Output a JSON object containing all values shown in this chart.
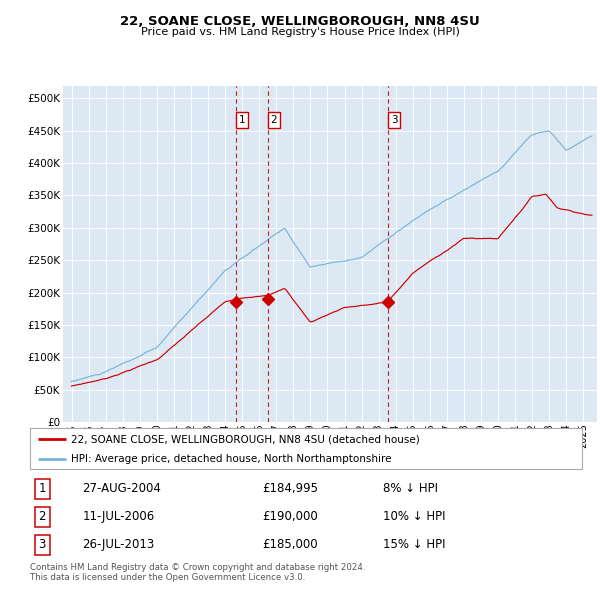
{
  "title": "22, SOANE CLOSE, WELLINGBOROUGH, NN8 4SU",
  "subtitle": "Price paid vs. HM Land Registry's House Price Index (HPI)",
  "background_color": "#ffffff",
  "plot_bg_color": "#dce9f5",
  "red_line_label": "22, SOANE CLOSE, WELLINGBOROUGH, NN8 4SU (detached house)",
  "blue_line_label": "HPI: Average price, detached house, North Northamptonshire",
  "footer": "Contains HM Land Registry data © Crown copyright and database right 2024.\nThis data is licensed under the Open Government Licence v3.0.",
  "transactions": [
    {
      "num": 1,
      "date": "27-AUG-2004",
      "price": "£184,995",
      "hpi": "8% ↓ HPI"
    },
    {
      "num": 2,
      "date": "11-JUL-2006",
      "price": "£190,000",
      "hpi": "10% ↓ HPI"
    },
    {
      "num": 3,
      "date": "26-JUL-2013",
      "price": "£185,000",
      "hpi": "15% ↓ HPI"
    }
  ],
  "vline_dates": [
    2004.65,
    2006.52,
    2013.56
  ],
  "sale_prices": [
    184995,
    190000,
    185000
  ],
  "sale_years": [
    2004.65,
    2006.52,
    2013.56
  ],
  "ylim": [
    0,
    520000
  ],
  "xlim_start": 1994.5,
  "xlim_end": 2025.8,
  "yticks": [
    0,
    50000,
    100000,
    150000,
    200000,
    250000,
    300000,
    350000,
    400000,
    450000,
    500000
  ],
  "ytick_labels": [
    "£0",
    "£50K",
    "£100K",
    "£150K",
    "£200K",
    "£250K",
    "£300K",
    "£350K",
    "£400K",
    "£450K",
    "£500K"
  ],
  "xticks": [
    1995,
    1996,
    1997,
    1998,
    1999,
    2000,
    2001,
    2002,
    2003,
    2004,
    2005,
    2006,
    2007,
    2008,
    2009,
    2010,
    2011,
    2012,
    2013,
    2014,
    2015,
    2016,
    2017,
    2018,
    2019,
    2020,
    2021,
    2022,
    2023,
    2024,
    2025
  ]
}
